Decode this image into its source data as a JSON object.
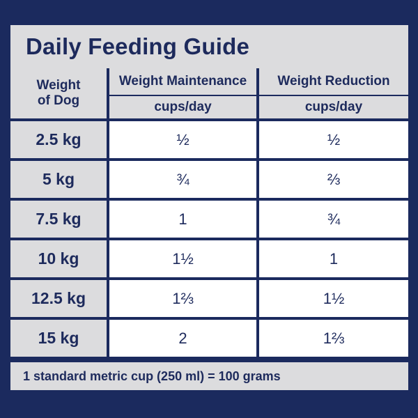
{
  "title": "Daily Feeding Guide",
  "headers": {
    "weight_line1": "Weight",
    "weight_line2": "of Dog",
    "maintenance": "Weight Maintenance",
    "reduction": "Weight Reduction",
    "maintenance_unit": "cups/day",
    "reduction_unit": "cups/day"
  },
  "rows": [
    {
      "weight": "2.5 kg",
      "maintenance": "½",
      "reduction": "½"
    },
    {
      "weight": "5 kg",
      "maintenance": "¾",
      "reduction": "⅔"
    },
    {
      "weight": "7.5 kg",
      "maintenance": "1",
      "reduction": "¾"
    },
    {
      "weight": "10 kg",
      "maintenance": "1½",
      "reduction": "1"
    },
    {
      "weight": "12.5 kg",
      "maintenance": "1⅔",
      "reduction": "1½"
    },
    {
      "weight": "15 kg",
      "maintenance": "2",
      "reduction": "1⅔"
    }
  ],
  "footer": "1 standard metric cup (250 ml) = 100 grams",
  "colors": {
    "navy": "#1b2a5e",
    "panel": "#dcdcde",
    "cell": "#ffffff"
  }
}
